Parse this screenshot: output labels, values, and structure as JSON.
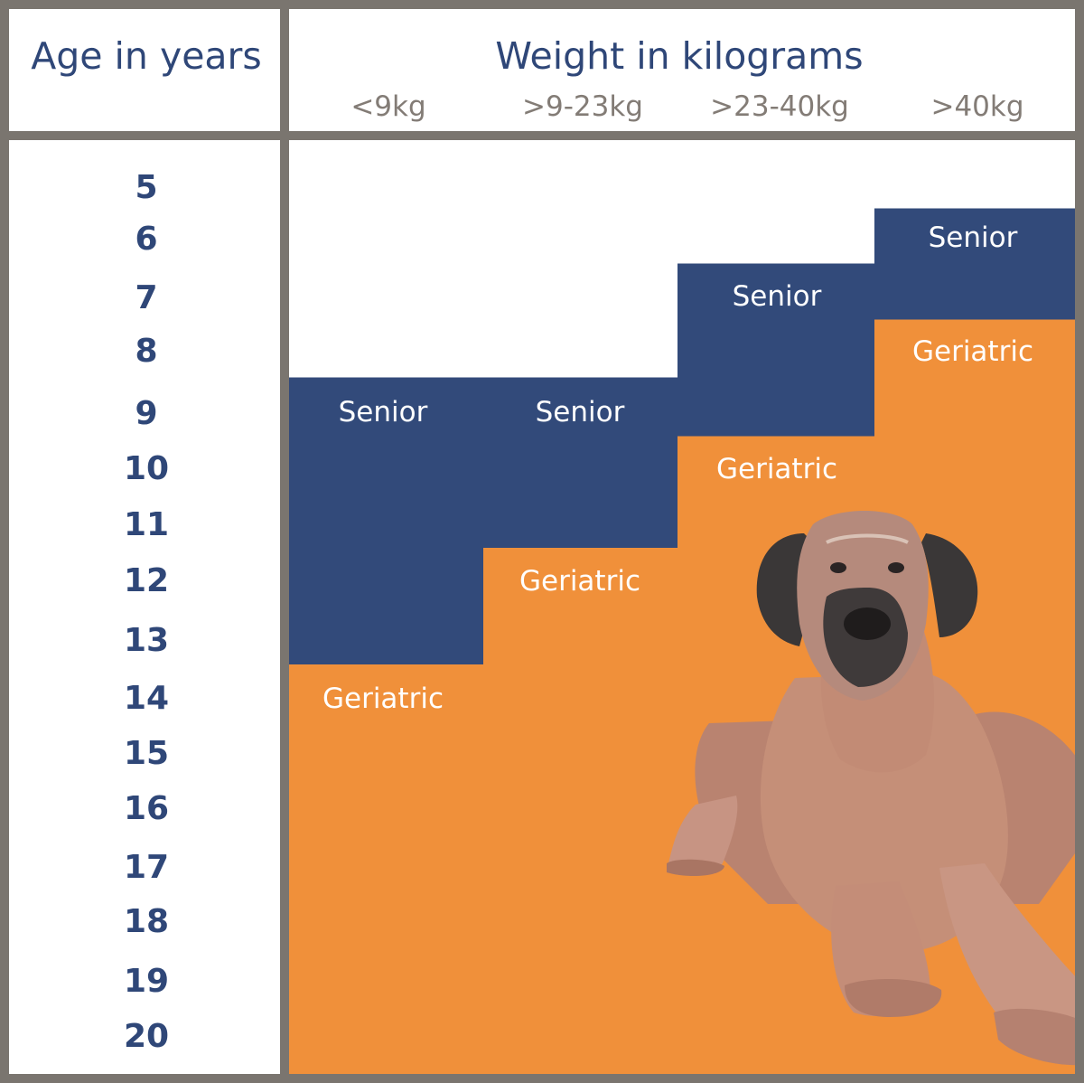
{
  "colors": {
    "frame": "#7a756f",
    "header_text": "#2f4778",
    "tick_text": "#837c76",
    "senior": "#324a7a",
    "geriatric": "#f0903a",
    "white": "#ffffff",
    "dog_skin": "#c58f78",
    "dog_dark": "#3c3838"
  },
  "header": {
    "age_title": "Age in years",
    "weight_title": "Weight in kilograms"
  },
  "chart_data": {
    "type": "table",
    "row_header": "Age in years",
    "column_header": "Weight in kilograms",
    "columns": [
      "<9kg",
      ">9-23kg",
      ">23-40kg",
      ">40kg"
    ],
    "ages": [
      "5",
      "6",
      "7",
      "8",
      "9",
      "10",
      "11",
      "12",
      "13",
      "14",
      "15",
      "16",
      "17",
      "18",
      "19",
      "20"
    ],
    "stage_labels": {
      "senior": "Senior",
      "geriatric": "Geriatric"
    },
    "stages_by_column": [
      {
        "column": "<9kg",
        "senior_from_age": 9,
        "geriatric_from_age": 14
      },
      {
        "column": ">9-23kg",
        "senior_from_age": 9,
        "geriatric_from_age": 12
      },
      {
        "column": ">23-40kg",
        "senior_from_age": 7,
        "geriatric_from_age": 10
      },
      {
        "column": ">40kg",
        "senior_from_age": 6,
        "geriatric_from_age": 8
      }
    ]
  },
  "image": {
    "icon": "great-dane-dog-icon"
  }
}
